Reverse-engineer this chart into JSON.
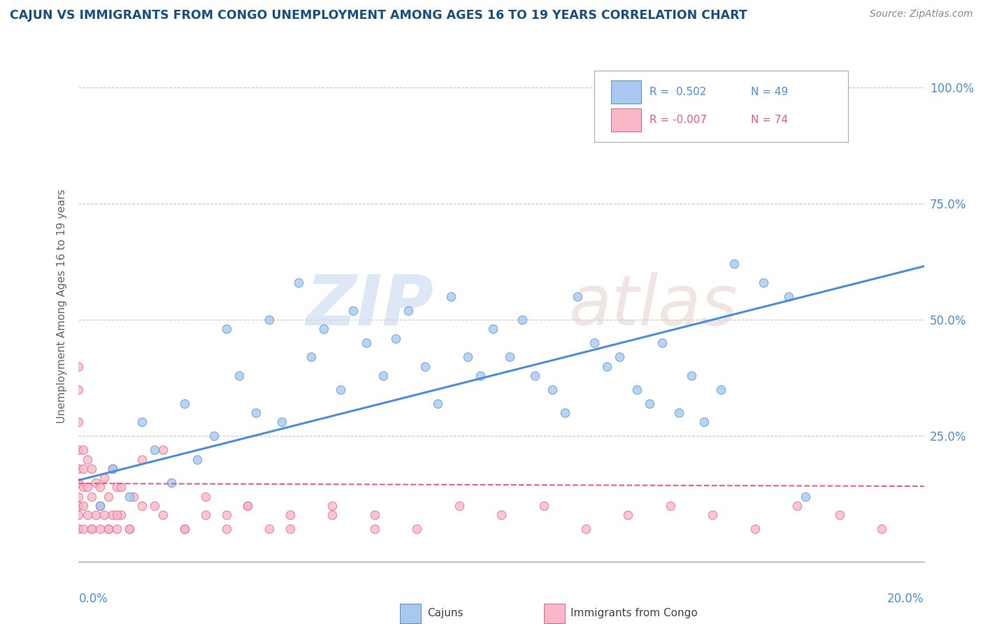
{
  "title": "CAJUN VS IMMIGRANTS FROM CONGO UNEMPLOYMENT AMONG AGES 16 TO 19 YEARS CORRELATION CHART",
  "source": "Source: ZipAtlas.com",
  "ylabel": "Unemployment Among Ages 16 to 19 years",
  "xlim": [
    0.0,
    0.2
  ],
  "ylim": [
    -0.02,
    1.08
  ],
  "cajun_color": "#a8c8f0",
  "cajun_edge": "#5090d0",
  "congo_color": "#f8b8c8",
  "congo_edge": "#e86080",
  "trend_cajun_color": "#4a8fd8",
  "trend_congo_color": "#e86080",
  "background_color": "#ffffff",
  "grid_color": "#c8c8c8",
  "title_color": "#1a5080",
  "axis_label_color": "#666666",
  "tick_label_color": "#4a8fd8",
  "source_color": "#888888",
  "cajun_x": [
    0.005,
    0.008,
    0.012,
    0.015,
    0.018,
    0.022,
    0.025,
    0.028,
    0.032,
    0.035,
    0.038,
    0.042,
    0.045,
    0.048,
    0.052,
    0.055,
    0.058,
    0.062,
    0.065,
    0.068,
    0.072,
    0.075,
    0.078,
    0.082,
    0.085,
    0.088,
    0.092,
    0.095,
    0.098,
    0.102,
    0.105,
    0.108,
    0.112,
    0.115,
    0.118,
    0.122,
    0.125,
    0.128,
    0.132,
    0.135,
    0.138,
    0.142,
    0.145,
    0.148,
    0.152,
    0.155,
    0.162,
    0.168,
    0.172
  ],
  "cajun_y": [
    0.1,
    0.18,
    0.12,
    0.28,
    0.22,
    0.15,
    0.32,
    0.2,
    0.25,
    0.48,
    0.38,
    0.3,
    0.5,
    0.28,
    0.58,
    0.42,
    0.48,
    0.35,
    0.52,
    0.45,
    0.38,
    0.46,
    0.52,
    0.4,
    0.32,
    0.55,
    0.42,
    0.38,
    0.48,
    0.42,
    0.5,
    0.38,
    0.35,
    0.3,
    0.55,
    0.45,
    0.4,
    0.42,
    0.35,
    0.32,
    0.45,
    0.3,
    0.38,
    0.28,
    0.35,
    0.62,
    0.58,
    0.55,
    0.12
  ],
  "congo_x": [
    0.0,
    0.0,
    0.0,
    0.0,
    0.0,
    0.0,
    0.0,
    0.0,
    0.0,
    0.0,
    0.001,
    0.001,
    0.001,
    0.001,
    0.001,
    0.002,
    0.002,
    0.002,
    0.003,
    0.003,
    0.003,
    0.004,
    0.004,
    0.005,
    0.005,
    0.006,
    0.006,
    0.007,
    0.007,
    0.008,
    0.008,
    0.009,
    0.009,
    0.01,
    0.01,
    0.012,
    0.013,
    0.015,
    0.018,
    0.02,
    0.025,
    0.03,
    0.035,
    0.04,
    0.045,
    0.05,
    0.06,
    0.07,
    0.08,
    0.09,
    0.1,
    0.11,
    0.12,
    0.13,
    0.14,
    0.15,
    0.16,
    0.17,
    0.18,
    0.19,
    0.003,
    0.005,
    0.007,
    0.009,
    0.012,
    0.015,
    0.02,
    0.025,
    0.03,
    0.035,
    0.04,
    0.05,
    0.06,
    0.07
  ],
  "congo_y": [
    0.05,
    0.08,
    0.1,
    0.12,
    0.15,
    0.18,
    0.22,
    0.28,
    0.35,
    0.4,
    0.05,
    0.1,
    0.14,
    0.18,
    0.22,
    0.08,
    0.14,
    0.2,
    0.05,
    0.12,
    0.18,
    0.08,
    0.15,
    0.05,
    0.14,
    0.08,
    0.16,
    0.05,
    0.12,
    0.08,
    0.18,
    0.05,
    0.14,
    0.08,
    0.14,
    0.05,
    0.12,
    0.2,
    0.1,
    0.22,
    0.05,
    0.12,
    0.08,
    0.1,
    0.05,
    0.08,
    0.1,
    0.08,
    0.05,
    0.1,
    0.08,
    0.1,
    0.05,
    0.08,
    0.1,
    0.08,
    0.05,
    0.1,
    0.08,
    0.05,
    0.05,
    0.1,
    0.05,
    0.08,
    0.05,
    0.1,
    0.08,
    0.05,
    0.08,
    0.05,
    0.1,
    0.05,
    0.08,
    0.05
  ],
  "cajun_trend_x": [
    0.0,
    0.2
  ],
  "cajun_trend_y": [
    0.155,
    0.615
  ],
  "congo_trend_x": [
    0.0,
    0.2
  ],
  "congo_trend_y": [
    0.148,
    0.142
  ],
  "legend_r1": "R =  0.502",
  "legend_n1": "N = 49",
  "legend_r2": "R = -0.007",
  "legend_n2": "N = 74"
}
